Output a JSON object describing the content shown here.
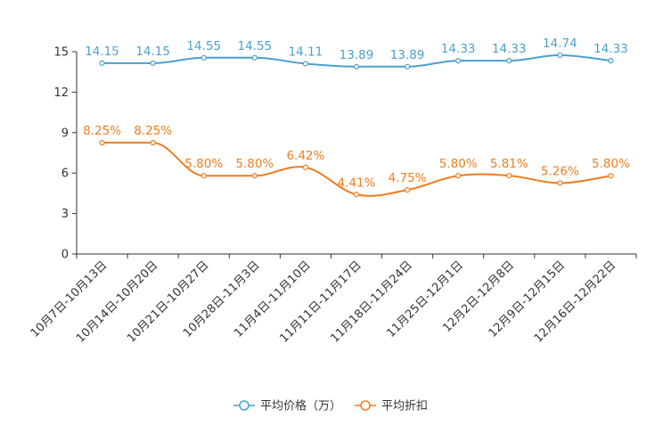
{
  "chart_data": {
    "type": "line",
    "categories": [
      "10月7日-10月13日",
      "10月14日-10月20日",
      "10月21日-10月27日",
      "10月28日-11月3日",
      "11月4日-11月10日",
      "11月11日-11月17日",
      "11月18日-11月24日",
      "11月25日-12月1日",
      "12月2日-12月8日",
      "12月9日-12月15日",
      "12月16日-12月22日"
    ],
    "ylim": [
      0,
      15
    ],
    "yticks": [
      "0",
      "3",
      "6",
      "9",
      "12",
      "15"
    ],
    "series": [
      {
        "name": "平均价格（万）",
        "color": "#4aa0cf",
        "values": [
          14.15,
          14.15,
          14.55,
          14.55,
          14.11,
          13.89,
          13.89,
          14.33,
          14.33,
          14.74,
          14.33
        ],
        "labels": [
          "14.15",
          "14.15",
          "14.55",
          "14.55",
          "14.11",
          "13.89",
          "13.89",
          "14.33",
          "14.33",
          "14.74",
          "14.33"
        ]
      },
      {
        "name": "平均折扣",
        "color": "#f07c1d",
        "values": [
          8.25,
          8.25,
          5.8,
          5.8,
          6.42,
          4.41,
          4.75,
          5.8,
          5.81,
          5.26,
          5.8
        ],
        "labels": [
          "8.25%",
          "8.25%",
          "5.80%",
          "5.80%",
          "6.42%",
          "4.41%",
          "4.75%",
          "5.80%",
          "5.81%",
          "5.26%",
          "5.80%"
        ]
      }
    ]
  }
}
